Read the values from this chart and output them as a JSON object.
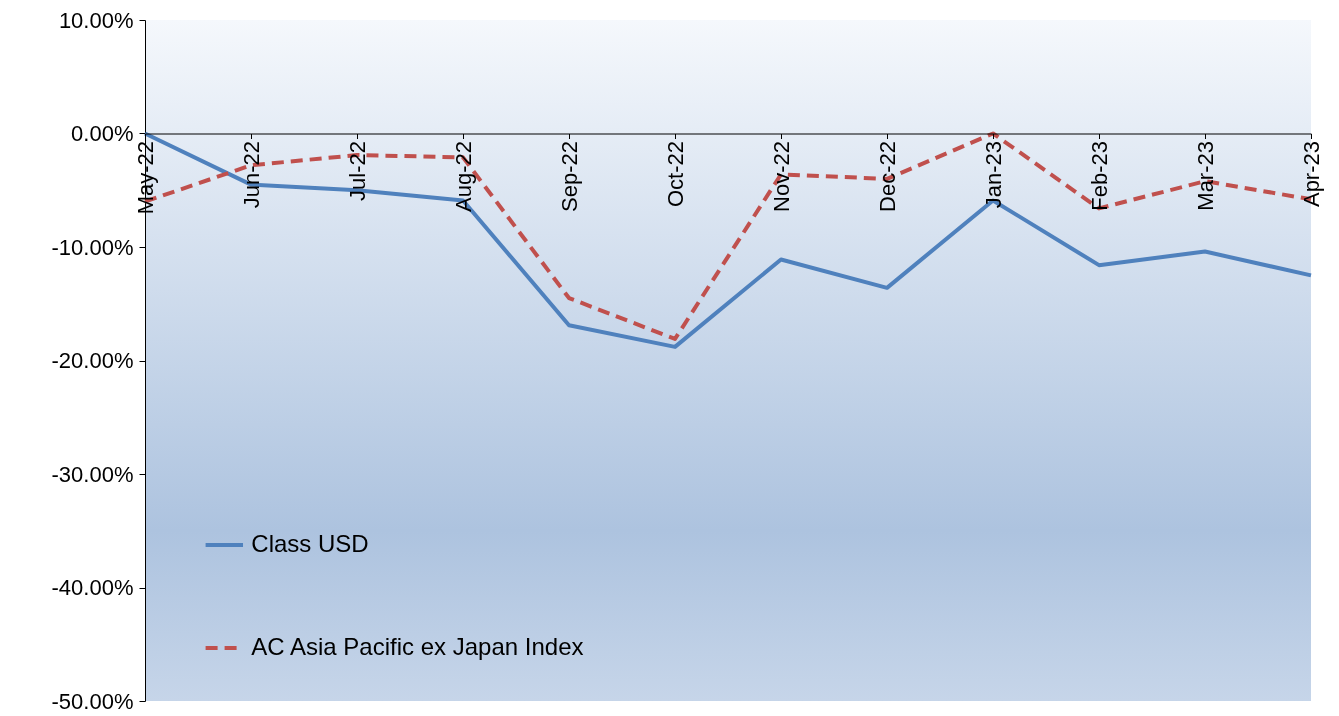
{
  "chart_data": {
    "type": "line",
    "categories": [
      "May-22",
      "Jun-22",
      "Jul-22",
      "Aug-22",
      "Sep-22",
      "Oct-22",
      "Nov-22",
      "Dec-22",
      "Jan-23",
      "Feb-23",
      "Mar-23",
      "Apr-23"
    ],
    "series": [
      {
        "name": "Class USD",
        "color": "#4f81bd",
        "line_style": "solid",
        "values": [
          0,
          -4.5,
          -5.0,
          -5.9,
          -16.9,
          -18.8,
          -11.1,
          -13.6,
          -5.9,
          -11.6,
          -10.4,
          -12.5
        ]
      },
      {
        "name": "AC Asia Pacific ex Japan Index",
        "color": "#c0504d",
        "line_style": "dashed",
        "values": [
          -6.0,
          -2.8,
          -1.9,
          -2.1,
          -14.5,
          -18.1,
          -3.6,
          -4.0,
          0,
          -6.6,
          -4.2,
          -5.8
        ]
      }
    ],
    "ylim": [
      -50,
      10
    ],
    "yticks": [
      {
        "value": 10,
        "label": "10.00%"
      },
      {
        "value": 0,
        "label": "0.00%"
      },
      {
        "value": -10,
        "label": "-10.00%"
      },
      {
        "value": -20,
        "label": "-20.00%"
      },
      {
        "value": -30,
        "label": "-30.00%"
      },
      {
        "value": -40,
        "label": "-40.00%"
      },
      {
        "value": -50,
        "label": "-50.00%"
      }
    ],
    "grid": false,
    "legend": "bottom left",
    "marker": "none"
  }
}
